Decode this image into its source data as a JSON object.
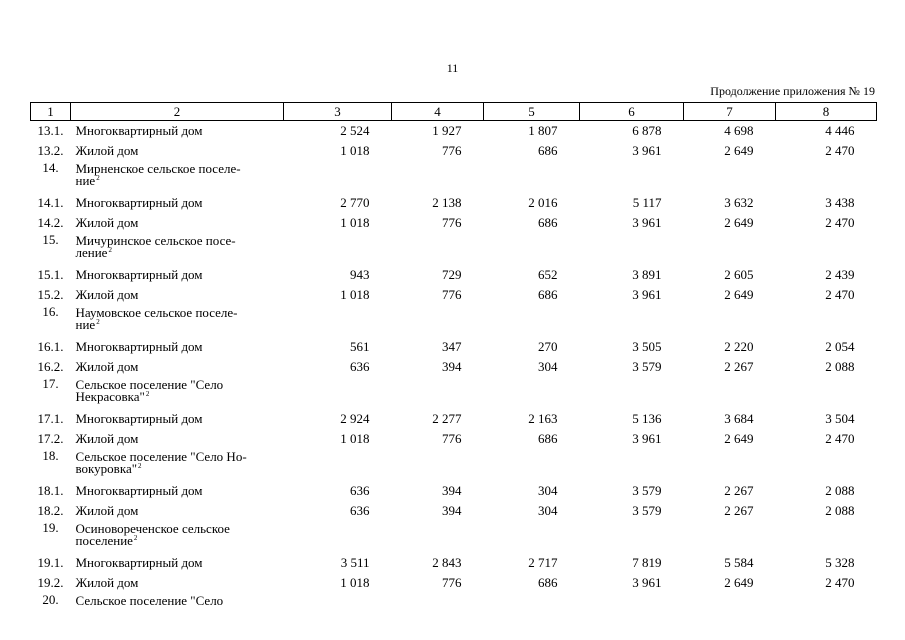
{
  "page": {
    "number": "11",
    "continuation": "Продолжение приложения № 19"
  },
  "table": {
    "headers": [
      "1",
      "2",
      "3",
      "4",
      "5",
      "6",
      "7",
      "8"
    ],
    "rows": [
      {
        "type": "item",
        "num": "13.1.",
        "name": "Многоквартирный дом",
        "values": [
          "2 524",
          "1 927",
          "1 807",
          "6 878",
          "4 698",
          "4 446"
        ]
      },
      {
        "type": "item",
        "num": "13.2.",
        "name": "Жилой дом",
        "values": [
          "1 018",
          "776",
          "686",
          "3 961",
          "2 649",
          "2 470"
        ]
      },
      {
        "type": "head",
        "num": "14.",
        "line1": "Мирненское сельское поселе-",
        "line2": "ние",
        "sup": "2"
      },
      {
        "type": "item",
        "num": "14.1.",
        "name": "Многоквартирный дом",
        "values": [
          "2 770",
          "2 138",
          "2 016",
          "5 117",
          "3 632",
          "3 438"
        ]
      },
      {
        "type": "item",
        "num": "14.2.",
        "name": "Жилой дом",
        "values": [
          "1 018",
          "776",
          "686",
          "3 961",
          "2 649",
          "2 470"
        ]
      },
      {
        "type": "head",
        "num": "15.",
        "line1": "Мичуринское сельское посе-",
        "line2": "ление",
        "sup": "2"
      },
      {
        "type": "item",
        "num": "15.1.",
        "name": "Многоквартирный дом",
        "values": [
          "943",
          "729",
          "652",
          "3 891",
          "2 605",
          "2 439"
        ]
      },
      {
        "type": "item",
        "num": "15.2.",
        "name": "Жилой дом",
        "values": [
          "1 018",
          "776",
          "686",
          "3 961",
          "2 649",
          "2 470"
        ]
      },
      {
        "type": "head",
        "num": "16.",
        "line1": "Наумовское сельское поселе-",
        "line2": "ние",
        "sup": "2"
      },
      {
        "type": "item",
        "num": "16.1.",
        "name": "Многоквартирный дом",
        "values": [
          "561",
          "347",
          "270",
          "3 505",
          "2 220",
          "2 054"
        ]
      },
      {
        "type": "item",
        "num": "16.2.",
        "name": "Жилой дом",
        "values": [
          "636",
          "394",
          "304",
          "3 579",
          "2 267",
          "2 088"
        ]
      },
      {
        "type": "head",
        "num": "17.",
        "line1": "Сельское поселение \"Село",
        "line2": "Некрасовка\"",
        "sup": "2"
      },
      {
        "type": "item",
        "num": "17.1.",
        "name": "Многоквартирный дом",
        "values": [
          "2 924",
          "2 277",
          "2 163",
          "5 136",
          "3 684",
          "3 504"
        ]
      },
      {
        "type": "item",
        "num": "17.2.",
        "name": "Жилой дом",
        "values": [
          "1 018",
          "776",
          "686",
          "3 961",
          "2 649",
          "2 470"
        ]
      },
      {
        "type": "head",
        "num": "18.",
        "line1": "Сельское поселение \"Село Но-",
        "line2": "вокуровка\"",
        "sup": "2"
      },
      {
        "type": "item",
        "num": "18.1.",
        "name": "Многоквартирный дом",
        "values": [
          "636",
          "394",
          "304",
          "3 579",
          "2 267",
          "2 088"
        ]
      },
      {
        "type": "item",
        "num": "18.2.",
        "name": "Жилой дом",
        "values": [
          "636",
          "394",
          "304",
          "3 579",
          "2 267",
          "2 088"
        ]
      },
      {
        "type": "head",
        "num": "19.",
        "line1": "Осиновореченское сельское",
        "line2": "поселение",
        "sup": "2"
      },
      {
        "type": "item",
        "num": "19.1.",
        "name": "Многоквартирный дом",
        "values": [
          "3 511",
          "2 843",
          "2 717",
          "7 819",
          "5 584",
          "5 328"
        ]
      },
      {
        "type": "item",
        "num": "19.2.",
        "name": "Жилой дом",
        "values": [
          "1 018",
          "776",
          "686",
          "3 961",
          "2 649",
          "2 470"
        ]
      },
      {
        "type": "head",
        "num": "20.",
        "line1": "Сельское поселение \"Село",
        "line2": "",
        "sup": ""
      }
    ]
  }
}
